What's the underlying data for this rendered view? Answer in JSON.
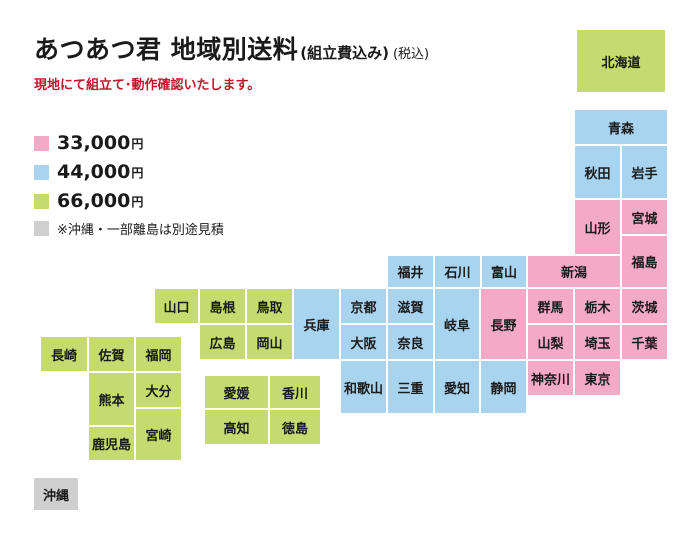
{
  "header": {
    "title": "あつあつ君 地域別送料",
    "title_note": "(組立費込み)",
    "tax_note": "(税込)",
    "subtitle": "現地にて組立て･動作確認いたします。"
  },
  "colors": {
    "pink": "#f4aac6",
    "blue": "#a9d4f0",
    "green": "#c5db6f",
    "gray": "#cfcfcf"
  },
  "legend": [
    {
      "price": "33,000",
      "unit": "円",
      "color": "pink"
    },
    {
      "price": "44,000",
      "unit": "円",
      "color": "blue"
    },
    {
      "price": "66,000",
      "unit": "円",
      "color": "green"
    },
    {
      "note": "※沖縄・一部離島は別途見積",
      "color": "gray"
    }
  ],
  "prefectures": {
    "hokkaido": "北海道",
    "aomori": "青森",
    "akita": "秋田",
    "iwate": "岩手",
    "yamagata": "山形",
    "miyagi": "宮城",
    "fukushima": "福島",
    "niigata": "新潟",
    "toyama": "富山",
    "ishikawa": "石川",
    "fukui": "福井",
    "nagano": "長野",
    "gunma": "群馬",
    "tochigi": "栃木",
    "ibaraki": "茨城",
    "yamanashi": "山梨",
    "saitama": "埼玉",
    "chiba": "千葉",
    "kanagawa": "神奈川",
    "tokyo": "東京",
    "gifu": "岐阜",
    "shizuoka": "静岡",
    "aichi": "愛知",
    "mie": "三重",
    "shiga": "滋賀",
    "kyoto": "京都",
    "nara": "奈良",
    "osaka": "大阪",
    "wakayama": "和歌山",
    "hyogo": "兵庫",
    "tottori": "鳥取",
    "shimane": "島根",
    "okayama": "岡山",
    "hiroshima": "広島",
    "yamaguchi": "山口",
    "ehime": "愛媛",
    "kagawa": "香川",
    "kochi": "高知",
    "tokushima": "徳島",
    "fukuoka": "福岡",
    "saga": "佐賀",
    "nagasaki": "長崎",
    "oita": "大分",
    "kumamoto": "熊本",
    "miyazaki": "宮崎",
    "kagoshima": "鹿児島",
    "okinawa": "沖縄"
  }
}
